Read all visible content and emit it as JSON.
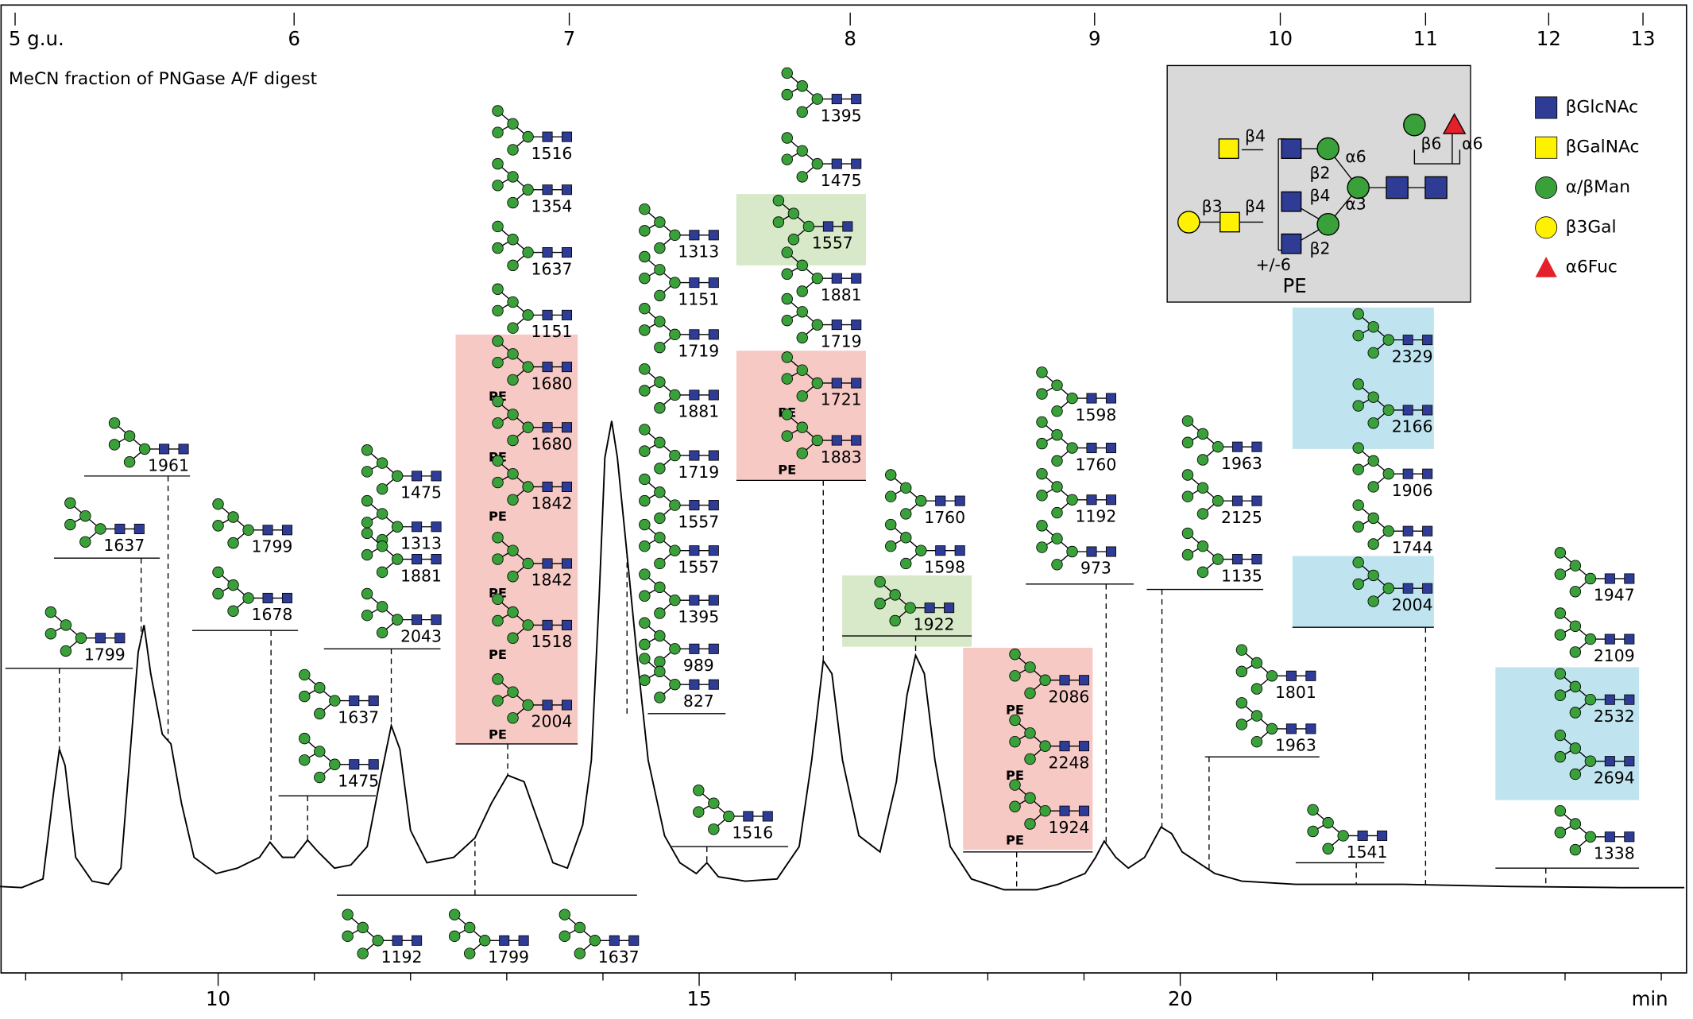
{
  "chart_data": {
    "type": "line",
    "subtitle": "MeCN fraction of PNGase A/F digest",
    "xlabel": "min",
    "xlim": [
      7.733,
      25.24
    ],
    "ylim": [
      0,
      897
    ],
    "xticks": [
      10,
      15,
      20
    ],
    "xminor": [
      8,
      9,
      11,
      12,
      13,
      14,
      16,
      17,
      18,
      19,
      21,
      22,
      23,
      24,
      25
    ],
    "gu_ticks": [
      {
        "value": 7.89,
        "label": "5 g.u."
      },
      {
        "value": 10.79,
        "label": "6"
      },
      {
        "value": 13.65,
        "label": "7"
      },
      {
        "value": 16.57,
        "label": "8"
      },
      {
        "value": 19.11,
        "label": "9"
      },
      {
        "value": 21.04,
        "label": "10"
      },
      {
        "value": 22.55,
        "label": "11"
      },
      {
        "value": 23.83,
        "label": "12"
      },
      {
        "value": 24.81,
        "label": "13"
      }
    ],
    "color": "#000000",
    "x": [
      7.73,
      7.96,
      8.18,
      8.29,
      8.35,
      8.41,
      8.52,
      8.69,
      8.86,
      8.99,
      9.08,
      9.17,
      9.23,
      9.3,
      9.42,
      9.51,
      9.62,
      9.75,
      9.98,
      10.2,
      10.43,
      10.54,
      10.67,
      10.79,
      10.93,
      11.04,
      11.21,
      11.38,
      11.55,
      11.68,
      11.8,
      11.89,
      12.0,
      12.17,
      12.45,
      12.67,
      12.84,
      13.01,
      13.18,
      13.34,
      13.48,
      13.63,
      13.79,
      13.88,
      13.96,
      14.02,
      14.09,
      14.15,
      14.24,
      14.35,
      14.47,
      14.64,
      14.8,
      14.97,
      15.08,
      15.2,
      15.48,
      15.81,
      16.04,
      16.17,
      16.29,
      16.38,
      16.49,
      16.66,
      16.88,
      17.05,
      17.16,
      17.25,
      17.34,
      17.45,
      17.61,
      17.83,
      18.17,
      18.51,
      18.73,
      19.01,
      19.12,
      19.21,
      19.33,
      19.46,
      19.63,
      19.8,
      19.91,
      20.02,
      20.19,
      20.36,
      20.64,
      21.2,
      22.32,
      23.44,
      24.57,
      25.24
    ],
    "values": [
      80,
      79,
      87,
      167,
      207,
      192,
      107,
      85,
      82,
      97,
      197,
      297,
      322,
      277,
      221,
      212,
      157,
      107,
      92,
      97,
      107,
      121,
      107,
      107,
      123,
      112,
      97,
      100,
      117,
      177,
      229,
      207,
      132,
      102,
      107,
      125,
      157,
      183,
      177,
      137,
      102,
      97,
      137,
      197,
      347,
      477,
      511,
      477,
      397,
      297,
      197,
      127,
      102,
      92,
      102,
      89,
      85,
      87,
      117,
      197,
      289,
      277,
      197,
      127,
      112,
      177,
      257,
      294,
      277,
      197,
      117,
      87,
      77,
      77,
      82,
      92,
      107,
      122,
      107,
      97,
      107,
      135,
      129,
      112,
      102,
      92,
      85,
      82,
      82,
      80,
      79,
      79
    ],
    "box_colors": {
      "pink": "#f6c9c4",
      "green": "#d7e9c8",
      "blue": "#bfe4ef"
    },
    "annotations": [
      {
        "time": 8.35,
        "glycans": [
          {
            "label": "1799"
          }
        ]
      },
      {
        "time": 9.2,
        "glycans": [
          {
            "label": "1637"
          }
        ]
      },
      {
        "time": 9.48,
        "glycans": [
          {
            "label": "1961"
          }
        ]
      },
      {
        "time": 10.55,
        "glycans": [
          {
            "label": "1799"
          },
          {
            "label": "1678"
          }
        ]
      },
      {
        "time": 10.93,
        "glycans": [
          {
            "label": "1637"
          },
          {
            "label": "1475"
          }
        ]
      },
      {
        "time": 11.8,
        "glycans": [
          {
            "label": "1475"
          },
          {
            "label": "1313"
          },
          {
            "label": "1881"
          },
          {
            "label": "2043"
          }
        ]
      },
      {
        "time": 13.01,
        "glycans": [
          {
            "label": "1516"
          },
          {
            "label": "1354"
          },
          {
            "label": "1637"
          },
          {
            "label": "1151"
          },
          {
            "label": "1680",
            "tag": "PE",
            "box": "pink"
          },
          {
            "label": "1680",
            "tag": "PE",
            "box": "pink"
          },
          {
            "label": "1842",
            "tag": "PE",
            "box": "pink"
          },
          {
            "label": "1842",
            "tag": "PE",
            "box": "pink"
          },
          {
            "label": "1518",
            "tag": "PE",
            "box": "pink"
          },
          {
            "label": "2004",
            "tag": "PE",
            "box": "pink"
          }
        ]
      },
      {
        "time": 12.67,
        "glycans": [
          {
            "label": "1192"
          },
          {
            "label": "1799"
          },
          {
            "label": "1637"
          }
        ]
      },
      {
        "time": 14.25,
        "glycans": [
          {
            "label": "1313"
          },
          {
            "label": "1151"
          },
          {
            "label": "1719"
          },
          {
            "label": "1881"
          },
          {
            "label": "1719"
          },
          {
            "label": "1557"
          },
          {
            "label": "1557"
          },
          {
            "label": "1395"
          },
          {
            "label": "989"
          },
          {
            "label": "827"
          }
        ]
      },
      {
        "time": 15.08,
        "glycans": [
          {
            "label": "1516"
          }
        ]
      },
      {
        "time": 16.29,
        "glycans": [
          {
            "label": "1395"
          },
          {
            "label": "1475"
          },
          {
            "label": "1557",
            "box": "green"
          },
          {
            "label": "1881"
          },
          {
            "label": "1719"
          },
          {
            "label": "1721",
            "tag": "PE",
            "box": "pink"
          },
          {
            "label": "1883",
            "tag": "PE",
            "box": "pink"
          }
        ]
      },
      {
        "time": 17.25,
        "glycans": [
          {
            "label": "1760"
          },
          {
            "label": "1598"
          },
          {
            "label": "1922",
            "box": "green"
          }
        ]
      },
      {
        "time": 18.3,
        "glycans": [
          {
            "label": "2086",
            "tag": "PE",
            "box": "pink"
          },
          {
            "label": "2248",
            "tag": "PE",
            "box": "pink"
          },
          {
            "label": "1924",
            "tag": "PE",
            "box": "pink"
          }
        ]
      },
      {
        "time": 19.23,
        "glycans": [
          {
            "label": "1598"
          },
          {
            "label": "1760"
          },
          {
            "label": "1192"
          },
          {
            "label": "973"
          }
        ]
      },
      {
        "time": 19.81,
        "glycans": [
          {
            "label": "1963"
          },
          {
            "label": "2125"
          },
          {
            "label": "1135"
          }
        ]
      },
      {
        "time": 20.3,
        "glycans": [
          {
            "label": "1801"
          },
          {
            "label": "1963"
          }
        ]
      },
      {
        "time": 22.55,
        "glycans": [
          {
            "label": "2329",
            "box": "blue"
          },
          {
            "label": "2166",
            "box": "blue"
          },
          {
            "label": "1906"
          },
          {
            "label": "1744"
          },
          {
            "label": "2004",
            "box": "blue"
          }
        ]
      },
      {
        "time": 21.83,
        "glycans": [
          {
            "label": "1541"
          }
        ]
      },
      {
        "time": 23.8,
        "glycans": [
          {
            "label": "1947"
          },
          {
            "label": "2109"
          },
          {
            "label": "2532",
            "box": "blue"
          },
          {
            "label": "2694",
            "box": "blue"
          },
          {
            "label": "1338"
          }
        ]
      }
    ],
    "legend": [
      {
        "name": "βGlcNAc",
        "color": "#2f3c96",
        "shape": "square"
      },
      {
        "name": "βGalNAc",
        "color": "#fff200",
        "shape": "square"
      },
      {
        "name": "α/βMan",
        "color": "#3aa13a",
        "shape": "circle"
      },
      {
        "name": "β3Gal",
        "color": "#fff200",
        "shape": "circle"
      },
      {
        "name": "α6Fuc",
        "color": "#e4202a",
        "shape": "triangle"
      }
    ],
    "schematic_labels": [
      "β4",
      "β3",
      "β4",
      "α6",
      "β2",
      "β4",
      "α3",
      "β2",
      "+/-6",
      "PE",
      "β6",
      "α6"
    ]
  }
}
